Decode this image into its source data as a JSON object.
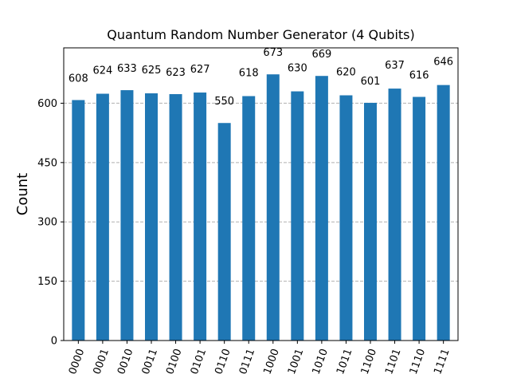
{
  "chart_data": {
    "type": "bar",
    "title": "Quantum Random Number Generator (4 Qubits)",
    "xlabel": "",
    "ylabel": "Count",
    "categories": [
      "0000",
      "0001",
      "0010",
      "0011",
      "0100",
      "0101",
      "0110",
      "0111",
      "1000",
      "1001",
      "1010",
      "1011",
      "1100",
      "1101",
      "1110",
      "1111"
    ],
    "values": [
      608,
      624,
      633,
      625,
      623,
      627,
      550,
      618,
      673,
      630,
      669,
      620,
      601,
      637,
      616,
      646
    ],
    "yticks": [
      0,
      150,
      300,
      450,
      600
    ],
    "ylim": [
      0,
      740
    ],
    "grid": "y-dashed",
    "bar_color": "#1f77b4",
    "grid_color": "#b0b0b0"
  }
}
